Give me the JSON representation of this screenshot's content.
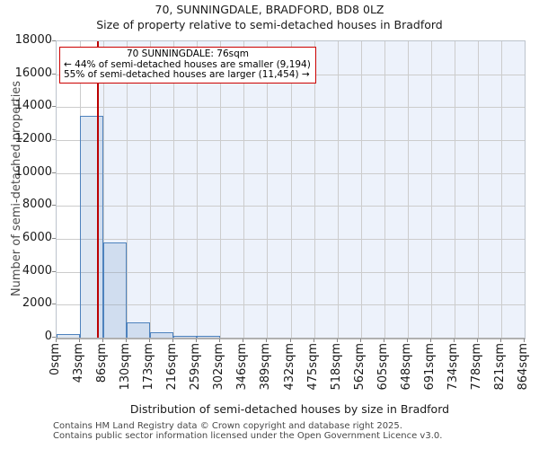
{
  "title": "70, SUNNINGDALE, BRADFORD, BD8 0LZ",
  "subtitle": "Size of property relative to semi-detached houses in Bradford",
  "annotation": {
    "line1": "70 SUNNINGDALE: 76sqm",
    "line2": "← 44% of semi-detached houses are smaller (9,194)",
    "line3": "55% of semi-detached houses are larger (11,454) →"
  },
  "footer": {
    "line1": "Contains HM Land Registry data © Crown copyright and database right 2025.",
    "line2": "Contains public sector information licensed under the Open Government Licence v3.0."
  },
  "chart_data": {
    "type": "bar",
    "title": "70, SUNNINGDALE, BRADFORD, BD8 0LZ",
    "subtitle": "Size of property relative to semi-detached houses in Bradford",
    "xlabel": "Distribution of semi-detached houses by size in Bradford",
    "ylabel": "Number of semi-detached properties",
    "ylim": [
      0,
      18000
    ],
    "ytick_step": 2000,
    "ytick_labels": [
      "0",
      "2000",
      "4000",
      "6000",
      "8000",
      "10000",
      "12000",
      "14000",
      "16000",
      "18000"
    ],
    "x_tick_labels": [
      "0sqm",
      "43sqm",
      "86sqm",
      "130sqm",
      "173sqm",
      "216sqm",
      "259sqm",
      "302sqm",
      "346sqm",
      "389sqm",
      "432sqm",
      "475sqm",
      "518sqm",
      "562sqm",
      "605sqm",
      "648sqm",
      "691sqm",
      "734sqm",
      "778sqm",
      "821sqm",
      "864sqm"
    ],
    "x_max_sqm": 864,
    "bin_width_sqm": 43.2,
    "categories": [
      "0-43sqm",
      "43-86sqm",
      "86-130sqm",
      "130-173sqm",
      "173-216sqm",
      "216-259sqm",
      "259-302sqm",
      "302-346sqm",
      "346-389sqm",
      "389-432sqm",
      "432-475sqm",
      "475-518sqm",
      "518-562sqm",
      "562-605sqm",
      "605-648sqm",
      "648-691sqm",
      "691-734sqm",
      "734-778sqm",
      "778-821sqm",
      "821-864sqm"
    ],
    "values": [
      200,
      13450,
      5800,
      950,
      330,
      120,
      40,
      0,
      0,
      0,
      0,
      0,
      0,
      0,
      0,
      0,
      0,
      0,
      0,
      0
    ],
    "marker_sqm": 76,
    "marker_label": "70 SUNNINGDALE: 76sqm",
    "smaller_pct": "44%",
    "smaller_count": "9,194",
    "larger_pct": "55%",
    "larger_count": "11,454",
    "grid": "on",
    "legend": "none",
    "colors": {
      "bar_fill": "rgba(79,129,189,0.18)",
      "bar_border": "#4e82bd",
      "marker_line": "#bb0000",
      "annotation_border": "#cc0000",
      "shade_region": "#edf2fb",
      "gridline": "#cccccc"
    }
  }
}
